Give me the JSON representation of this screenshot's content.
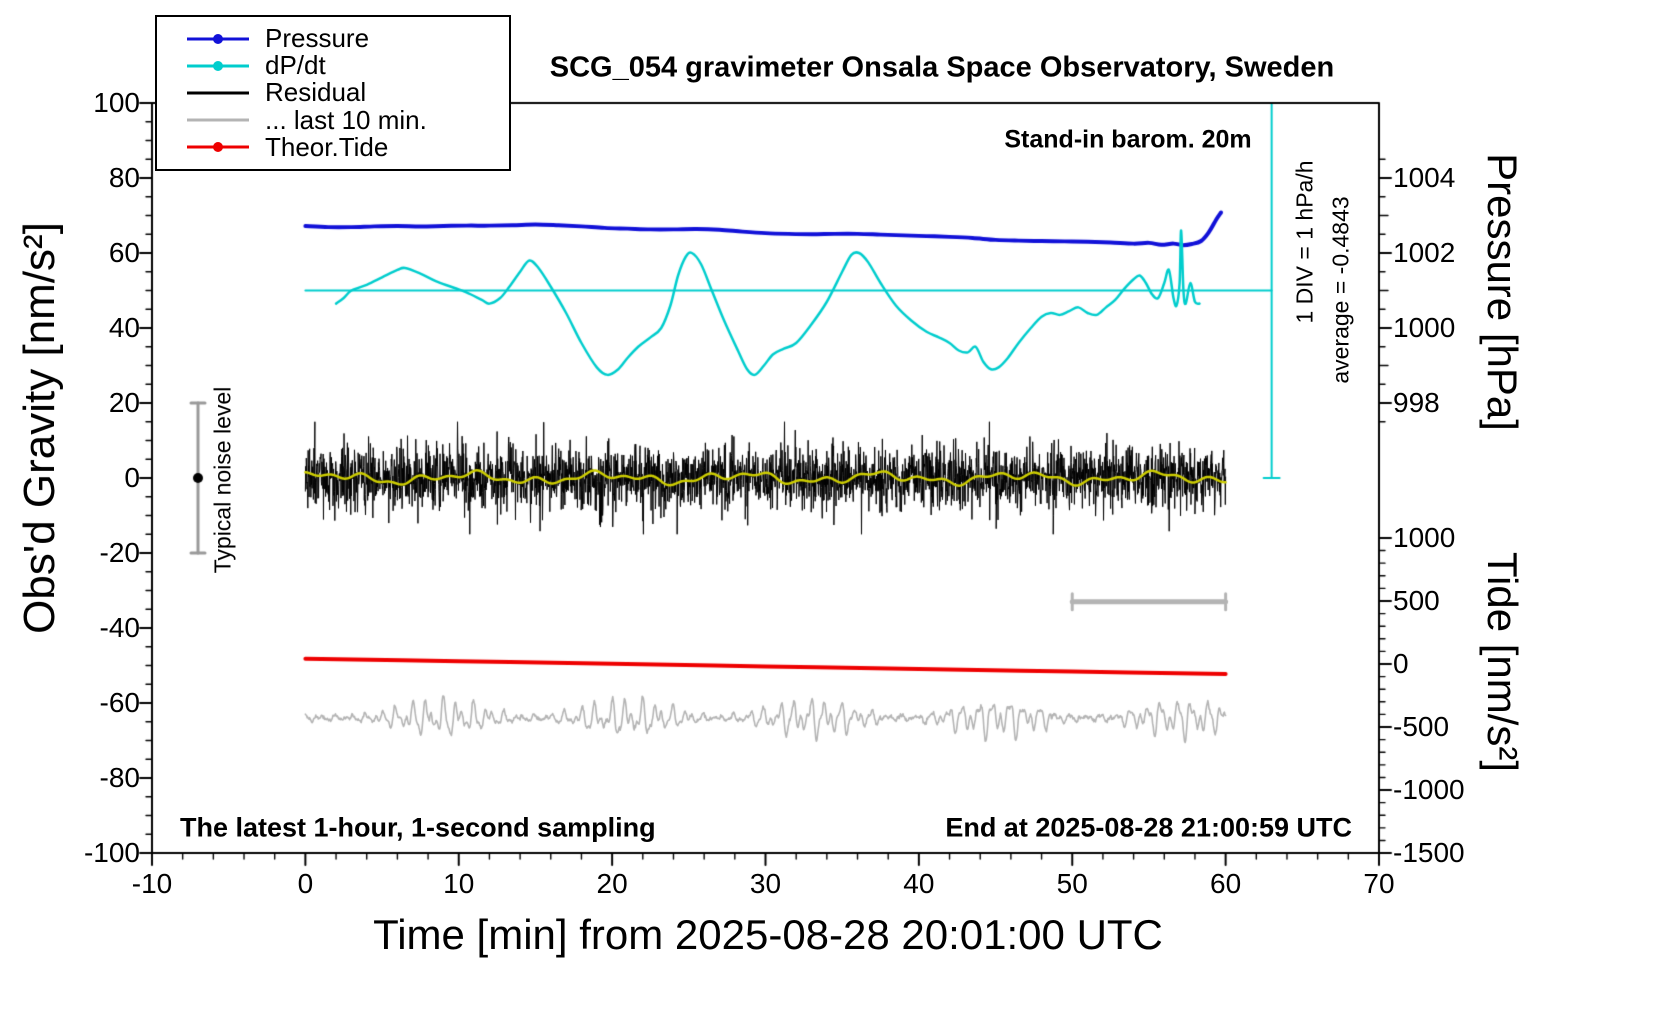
{
  "title": "SCG_054 gravimeter Onsala Space Observatory, Sweden",
  "annotations": {
    "barom": "Stand-in barom. 20m",
    "div_scale": "1 DIV = 1 hPa/h",
    "average": "average = -0.4843",
    "noise_level": "Typical noise level",
    "sampling": "The latest 1-hour, 1-second sampling",
    "end_time": "End at 2025-08-28 21:00:59 UTC"
  },
  "axes": {
    "x": {
      "label": "Time [min] from 2025-08-28 20:01:00 UTC",
      "range": [
        -10,
        70
      ],
      "ticks": [
        -10,
        0,
        10,
        20,
        30,
        40,
        50,
        60,
        70
      ],
      "minor_step": 2
    },
    "gravity": {
      "label": "Obs'd Gravity [nm/s²]",
      "range": [
        -100,
        100
      ],
      "ticks": [
        100,
        80,
        60,
        40,
        20,
        0,
        -20,
        -40,
        -60,
        -80,
        -100
      ],
      "minor_step": 5
    },
    "pressure": {
      "label": "Pressure [hPa]",
      "ticks": [
        1004,
        1002,
        1000,
        998
      ],
      "minor_step": 0.5
    },
    "tide": {
      "label": "Tide [nm/s²]",
      "ticks": [
        1000,
        500,
        0,
        -500,
        -1000,
        -1500
      ],
      "minor_step": 100
    }
  },
  "legend": {
    "items": [
      {
        "label": "Pressure",
        "color": "#1111d8",
        "marker": true
      },
      {
        "label": "dP/dt",
        "color": "#00cdcd",
        "marker": true
      },
      {
        "label": "Residual",
        "color": "#000000",
        "marker": false
      },
      {
        "label": "... last 10 min.",
        "color": "#b4b4b4",
        "marker": false
      },
      {
        "label": "Theor.Tide",
        "color": "#ee0000",
        "marker": true
      }
    ]
  },
  "chart_data": {
    "type": "line",
    "title": "SCG_054 gravimeter Onsala Space Observatory, Sweden",
    "x_unit": "min",
    "x_range": [
      -10,
      70
    ],
    "gravity_range": [
      -100,
      100
    ],
    "pressure_axis_hpa": [
      998,
      1004
    ],
    "tide_axis_nms2": [
      -1500,
      1000
    ],
    "series": [
      {
        "name": "Pressure",
        "color": "#1111d8",
        "axis": "pressure",
        "unit": "hPa",
        "width": 4,
        "points": [
          [
            0,
            1002.72
          ],
          [
            1.5,
            1002.69
          ],
          [
            3,
            1002.69
          ],
          [
            4.5,
            1002.71
          ],
          [
            6,
            1002.72
          ],
          [
            7.5,
            1002.71
          ],
          [
            9,
            1002.72
          ],
          [
            10.5,
            1002.73
          ],
          [
            12,
            1002.73
          ],
          [
            13.5,
            1002.74
          ],
          [
            15,
            1002.76
          ],
          [
            16.5,
            1002.74
          ],
          [
            18,
            1002.71
          ],
          [
            19.5,
            1002.67
          ],
          [
            21,
            1002.65
          ],
          [
            22.5,
            1002.63
          ],
          [
            24,
            1002.63
          ],
          [
            25.5,
            1002.64
          ],
          [
            27,
            1002.62
          ],
          [
            28.5,
            1002.57
          ],
          [
            30,
            1002.53
          ],
          [
            31.5,
            1002.51
          ],
          [
            33,
            1002.5
          ],
          [
            34.5,
            1002.51
          ],
          [
            36,
            1002.51
          ],
          [
            37.5,
            1002.49
          ],
          [
            39,
            1002.47
          ],
          [
            40.5,
            1002.45
          ],
          [
            42,
            1002.43
          ],
          [
            43.5,
            1002.4
          ],
          [
            45,
            1002.35
          ],
          [
            46.5,
            1002.33
          ],
          [
            48,
            1002.32
          ],
          [
            49.5,
            1002.31
          ],
          [
            51,
            1002.3
          ],
          [
            52.5,
            1002.28
          ],
          [
            54,
            1002.25
          ],
          [
            55,
            1002.27
          ],
          [
            55.8,
            1002.22
          ],
          [
            56.6,
            1002.25
          ],
          [
            57.2,
            1002.21
          ],
          [
            57.8,
            1002.24
          ],
          [
            58.4,
            1002.32
          ],
          [
            58.9,
            1002.55
          ],
          [
            59.4,
            1002.9
          ],
          [
            59.7,
            1003.08
          ]
        ]
      },
      {
        "name": "dP/dt",
        "color": "#00cdcd",
        "axis": "gravity",
        "unit": "hPa/h",
        "width": 2.5,
        "zero_gravity": 50,
        "gravity_per_hpa_h": 10,
        "average_hpa_h": -0.4843,
        "points_gravity": [
          [
            2,
            46.5
          ],
          [
            2.5,
            48
          ],
          [
            3,
            50
          ],
          [
            4,
            51.5
          ],
          [
            5,
            53.5
          ],
          [
            6,
            55.5
          ],
          [
            6.5,
            56
          ],
          [
            7.5,
            54.5
          ],
          [
            8.5,
            52.5
          ],
          [
            9.5,
            51
          ],
          [
            10.5,
            49.5
          ],
          [
            11.5,
            47.5
          ],
          [
            12,
            46.5
          ],
          [
            12.7,
            48
          ],
          [
            13.3,
            51
          ],
          [
            14,
            55
          ],
          [
            14.6,
            58
          ],
          [
            15.2,
            56
          ],
          [
            16,
            51
          ],
          [
            17,
            44
          ],
          [
            18,
            36
          ],
          [
            19,
            29.5
          ],
          [
            19.7,
            27.5
          ],
          [
            20.4,
            29
          ],
          [
            21,
            32
          ],
          [
            21.7,
            35
          ],
          [
            22.5,
            37.5
          ],
          [
            23.2,
            40
          ],
          [
            23.8,
            46
          ],
          [
            24.3,
            54
          ],
          [
            24.8,
            59
          ],
          [
            25.2,
            60
          ],
          [
            25.8,
            57
          ],
          [
            26.5,
            50
          ],
          [
            27.3,
            42
          ],
          [
            28.2,
            34
          ],
          [
            28.8,
            29
          ],
          [
            29.3,
            27.5
          ],
          [
            29.9,
            30
          ],
          [
            30.5,
            33
          ],
          [
            31.2,
            34.5
          ],
          [
            32,
            36
          ],
          [
            33,
            41
          ],
          [
            34,
            47
          ],
          [
            35,
            55
          ],
          [
            35.6,
            59.5
          ],
          [
            36.1,
            60
          ],
          [
            36.7,
            57.5
          ],
          [
            37.5,
            52
          ],
          [
            38.5,
            46
          ],
          [
            39.5,
            42
          ],
          [
            40.5,
            39
          ],
          [
            41.3,
            37.5
          ],
          [
            42,
            36
          ],
          [
            42.6,
            34
          ],
          [
            43.2,
            33.5
          ],
          [
            43.7,
            35
          ],
          [
            44.2,
            31
          ],
          [
            44.7,
            29
          ],
          [
            45.2,
            29.5
          ],
          [
            45.8,
            32
          ],
          [
            46.5,
            36
          ],
          [
            47.3,
            40
          ],
          [
            48,
            43
          ],
          [
            48.6,
            44
          ],
          [
            49.2,
            43.5
          ],
          [
            49.8,
            44.5
          ],
          [
            50.4,
            45.5
          ],
          [
            51,
            44
          ],
          [
            51.6,
            43.5
          ],
          [
            52.2,
            45.5
          ],
          [
            52.8,
            47.5
          ],
          [
            53.4,
            50.5
          ],
          [
            54,
            53
          ],
          [
            54.4,
            54
          ],
          [
            54.8,
            52
          ],
          [
            55.2,
            49
          ],
          [
            55.6,
            48
          ],
          [
            56,
            52
          ],
          [
            56.3,
            55.5
          ],
          [
            56.6,
            48
          ],
          [
            56.8,
            46
          ],
          [
            57,
            52
          ],
          [
            57.1,
            66
          ],
          [
            57.25,
            50
          ],
          [
            57.4,
            46.5
          ],
          [
            57.7,
            52
          ],
          [
            58,
            47
          ],
          [
            58.3,
            46.5
          ]
        ]
      },
      {
        "name": "Residual",
        "color": "#000000",
        "axis": "gravity",
        "render": "noise",
        "mean": 0,
        "sigma": 4.2,
        "spike_prob": 0.02,
        "spike_scale": 2.3,
        "n": 3000,
        "t_range": [
          0,
          60
        ],
        "seed": 20250828
      },
      {
        "name": "Residual mean",
        "color": "#cdcd00",
        "axis": "gravity",
        "render": "smooth",
        "amplitude": 1.2,
        "t_range": [
          0,
          60
        ]
      },
      {
        "name": "... last 10 min.",
        "color": "#b4b4b4",
        "axis": "display",
        "render": "wiggle",
        "center_gravity": -64,
        "amplitude": 4,
        "t_range": [
          0,
          60
        ],
        "seed": 77
      },
      {
        "name": "Theor.Tide",
        "color": "#ee0000",
        "axis": "tide",
        "unit": "nm/s²",
        "width": 4,
        "points": [
          [
            0,
            42
          ],
          [
            10,
            22
          ],
          [
            20,
            2
          ],
          [
            30,
            -19
          ],
          [
            40,
            -40
          ],
          [
            50,
            -60
          ],
          [
            60,
            -80
          ]
        ]
      }
    ],
    "markers": {
      "noise_bar": {
        "t": -7,
        "g_from": -20,
        "g_to": 20,
        "dot_g": 0,
        "color": "#9a9a9a"
      },
      "last10_bar": {
        "t_from": 50,
        "t_to": 60,
        "g": -33,
        "color": "#b4b4b4"
      },
      "dpdt_zero_line": {
        "t_from": 0,
        "t_to": 63,
        "g": 50
      },
      "dpdt_scale_bar": {
        "t": 63,
        "g_from": 0,
        "g_to": 100
      }
    }
  }
}
